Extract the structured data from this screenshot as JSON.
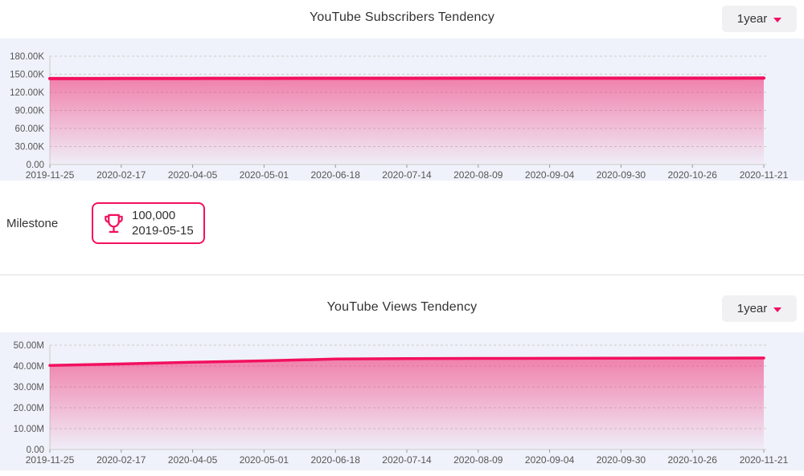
{
  "colors": {
    "accent": "#f2105f",
    "panel_bg": "#eff2fa",
    "grid_line": "#cccccc",
    "tick_mark": "#999999",
    "axis_text": "#555555",
    "title_text": "#333333",
    "dropdown_bg": "#f1f1f4",
    "divider": "#dddddd"
  },
  "sections": [
    {
      "title": "YouTube Subscribers Tendency",
      "range_selector": "1year"
    },
    {
      "title": "YouTube Views Tendency",
      "range_selector": "1year"
    }
  ],
  "milestone": {
    "label": "Milestone",
    "value": "100,000",
    "date": "2019-05-15",
    "icon": "trophy-icon"
  },
  "chart_data": [
    {
      "type": "area",
      "title": "YouTube Subscribers Tendency",
      "categories": [
        "2019-11-25",
        "2020-02-17",
        "2020-04-05",
        "2020-05-01",
        "2020-06-18",
        "2020-07-14",
        "2020-08-09",
        "2020-09-04",
        "2020-09-30",
        "2020-10-26",
        "2020-11-21"
      ],
      "values": [
        142800,
        143000,
        143100,
        143200,
        143300,
        143300,
        143400,
        143400,
        143500,
        143500,
        143600
      ],
      "y_ticks": [
        "0.00",
        "30.00K",
        "60.00K",
        "90.00K",
        "120.00K",
        "150.00K",
        "180.00K"
      ],
      "y_tick_step": 30000,
      "ylim": [
        0,
        180000
      ],
      "xlabel": "",
      "ylabel": "",
      "grid": "dashed-horizontal",
      "legend": false
    },
    {
      "type": "area",
      "title": "YouTube Views Tendency",
      "categories": [
        "2019-11-25",
        "2020-02-17",
        "2020-04-05",
        "2020-05-01",
        "2020-06-18",
        "2020-07-14",
        "2020-08-09",
        "2020-09-04",
        "2020-09-30",
        "2020-10-26",
        "2020-11-21"
      ],
      "values": [
        40300000,
        41000000,
        41800000,
        42500000,
        43350000,
        43550000,
        43650000,
        43700000,
        43750000,
        43800000,
        43850000
      ],
      "y_ticks": [
        "0.00",
        "10.00M",
        "20.00M",
        "30.00M",
        "40.00M",
        "50.00M"
      ],
      "y_tick_step": 10000000,
      "ylim": [
        0,
        50000000
      ],
      "xlabel": "",
      "ylabel": "",
      "grid": "dashed-horizontal",
      "legend": false
    }
  ]
}
